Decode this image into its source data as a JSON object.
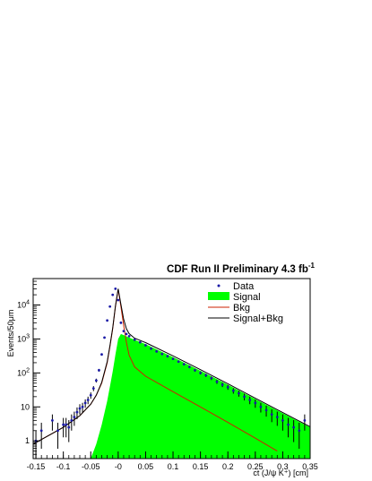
{
  "chart_data": {
    "type": "line",
    "title": "CDF Run II Preliminary 4.3 fb",
    "title_superscript": "-1",
    "xlabel": "ct (J/ψ K⁺) [cm]",
    "ylabel": "Events/50μm",
    "xlim": [
      -0.155,
      0.35
    ],
    "ylim": [
      0.3,
      60000
    ],
    "y_scale": "log",
    "grid": false,
    "legend_position": "top-right",
    "x_ticks": [
      "-0.15",
      "-0.1",
      "-0.05",
      "-0",
      "0.05",
      "0.1",
      "0.15",
      "0.2",
      "0.25",
      "0.3",
      "0.35"
    ],
    "x_tick_values": [
      -0.15,
      -0.1,
      -0.05,
      0,
      0.05,
      0.1,
      0.15,
      0.2,
      0.25,
      0.3,
      0.35
    ],
    "y_ticks": [
      "1",
      "10",
      "10^2",
      "10^3",
      "10^4"
    ],
    "y_tick_values": [
      1,
      10,
      100,
      1000,
      10000
    ],
    "legend": [
      {
        "label": "Data",
        "style": "marker",
        "color": "#1a1aa6"
      },
      {
        "label": "Signal",
        "style": "fill",
        "color": "#00ff00"
      },
      {
        "label": "Bkg",
        "style": "line",
        "color": "#cc2200"
      },
      {
        "label": "Signal+Bkg",
        "style": "line",
        "color": "#000000"
      }
    ],
    "series": [
      {
        "name": "Data",
        "color": "#1a1aa6",
        "x": [
          -0.15,
          -0.14,
          -0.12,
          -0.11,
          -0.1,
          -0.095,
          -0.09,
          -0.085,
          -0.08,
          -0.075,
          -0.07,
          -0.065,
          -0.06,
          -0.055,
          -0.05,
          -0.045,
          -0.04,
          -0.035,
          -0.03,
          -0.025,
          -0.02,
          -0.015,
          -0.01,
          -0.005,
          0.0,
          0.005,
          0.01,
          0.015,
          0.02,
          0.03,
          0.04,
          0.05,
          0.06,
          0.07,
          0.08,
          0.09,
          0.1,
          0.11,
          0.12,
          0.13,
          0.14,
          0.15,
          0.16,
          0.17,
          0.18,
          0.19,
          0.2,
          0.21,
          0.22,
          0.23,
          0.24,
          0.25,
          0.26,
          0.27,
          0.28,
          0.29,
          0.3,
          0.31,
          0.32,
          0.33,
          0.34
        ],
        "y": [
          1,
          2,
          4,
          2,
          3,
          3,
          2.5,
          4,
          5,
          7,
          9,
          10,
          13,
          16,
          22,
          35,
          60,
          120,
          350,
          1100,
          3500,
          9000,
          20000,
          30000,
          14000,
          3000,
          1700,
          1400,
          1200,
          950,
          800,
          650,
          520,
          430,
          360,
          310,
          260,
          215,
          180,
          150,
          120,
          100,
          85,
          70,
          55,
          45,
          38,
          30,
          25,
          20,
          16,
          13,
          10,
          8,
          6,
          5,
          4,
          3,
          2.5,
          2,
          4
        ]
      },
      {
        "name": "Signal",
        "color": "#00ff00",
        "x": [
          -0.05,
          -0.04,
          -0.03,
          -0.02,
          -0.015,
          -0.01,
          -0.005,
          0.0,
          0.005,
          0.01,
          0.02,
          0.05,
          0.1,
          0.15,
          0.2,
          0.25,
          0.3,
          0.35
        ],
        "y": [
          0.3,
          0.8,
          3,
          15,
          40,
          110,
          350,
          1000,
          1400,
          1300,
          1100,
          700,
          290,
          115,
          45,
          17,
          6.5,
          2.5
        ]
      },
      {
        "name": "Bkg",
        "color": "#cc2200",
        "x": [
          -0.155,
          -0.1,
          -0.07,
          -0.05,
          -0.04,
          -0.03,
          -0.02,
          -0.015,
          -0.01,
          -0.005,
          0.0,
          0.005,
          0.01,
          0.015,
          0.02,
          0.03,
          0.05,
          0.1,
          0.15,
          0.2,
          0.25,
          0.29
        ],
        "y": [
          0.8,
          2.5,
          5.5,
          12,
          22,
          50,
          200,
          600,
          2000,
          9000,
          29000,
          9000,
          2500,
          800,
          330,
          150,
          80,
          28,
          10,
          3.5,
          1.2,
          0.5
        ]
      },
      {
        "name": "Signal+Bkg",
        "color": "#000000",
        "x": [
          -0.155,
          -0.1,
          -0.07,
          -0.05,
          -0.04,
          -0.03,
          -0.02,
          -0.015,
          -0.01,
          -0.005,
          0.0,
          0.005,
          0.01,
          0.015,
          0.02,
          0.03,
          0.05,
          0.1,
          0.15,
          0.2,
          0.25,
          0.3,
          0.35
        ],
        "y": [
          0.8,
          2.5,
          5.5,
          12,
          22,
          53,
          215,
          640,
          2100,
          9350,
          30000,
          10400,
          3800,
          2000,
          1430,
          1050,
          780,
          318,
          125,
          48,
          18,
          6.8,
          2.6
        ]
      }
    ]
  }
}
